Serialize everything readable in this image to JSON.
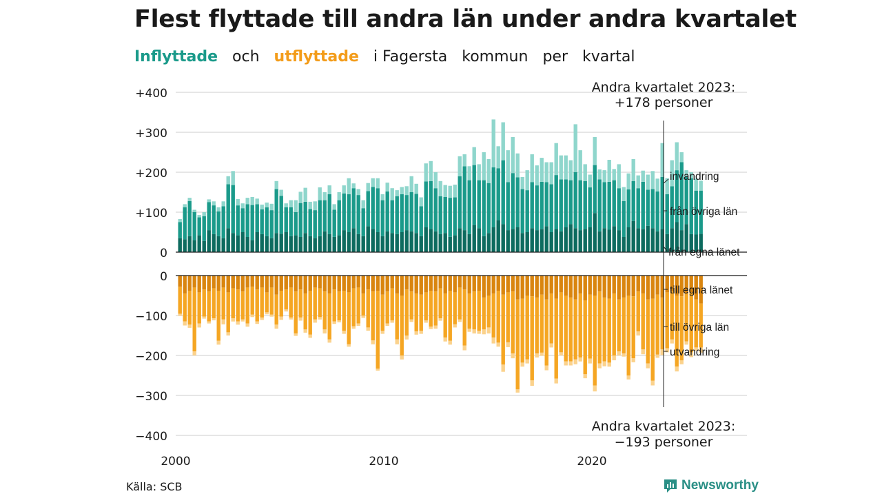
{
  "title": "Flest flyttade till andra län under andra kvartalet",
  "subtitle": {
    "in_word": "Inflyttade",
    "and_word": "och",
    "out_word": "utflyttade",
    "rest_1": "i Fagersta",
    "rest_2": "kommun",
    "rest_3": "per",
    "rest_4": "kvartal"
  },
  "source": "Källa: SCB",
  "brand": "Newsworthy",
  "colors": {
    "in_own": "#0d6b5f",
    "in_other": "#1a9a8a",
    "in_immig": "#8fd6cc",
    "out_own": "#d9850f",
    "out_other": "#f5a623",
    "out_emig": "#fbd28c",
    "grid": "#dddddd"
  },
  "chart_data": {
    "type": "bar",
    "stacked": true,
    "x_ticks": [
      "2000",
      "2010",
      "2020"
    ],
    "y_ticks_top": [
      "+400",
      "+300",
      "+200",
      "+100",
      "0"
    ],
    "y_ticks_bottom": [
      "0",
      "−100",
      "−200",
      "−300",
      "−400"
    ],
    "ylim_top": [
      0,
      400
    ],
    "ylim_bottom": [
      -400,
      0
    ],
    "annotation_top": [
      "Andra kvartalet 2023:",
      "+178 personer"
    ],
    "annotation_bottom": [
      "Andra kvartalet 2023:",
      "−193 personer"
    ],
    "series_in": [
      {
        "name": "från egna länet",
        "key": "own",
        "values": [
          35,
          32,
          40,
          30,
          42,
          28,
          55,
          45,
          40,
          35,
          60,
          48,
          42,
          50,
          38,
          30,
          50,
          45,
          40,
          35,
          48,
          46,
          50,
          40,
          42,
          38,
          48,
          40,
          35,
          40,
          52,
          45,
          38,
          42,
          55,
          50,
          60,
          45,
          40,
          65,
          58,
          50,
          40,
          52,
          48,
          45,
          50,
          55,
          52,
          48,
          40,
          62,
          58,
          52,
          45,
          48,
          38,
          42,
          60,
          55,
          45,
          68,
          60,
          40,
          48,
          62,
          80,
          70,
          55,
          58,
          62,
          48,
          50,
          60,
          55,
          58,
          65,
          50,
          58,
          52,
          62,
          70,
          60,
          55,
          58,
          62,
          98,
          52,
          60,
          56,
          65,
          55,
          38,
          62,
          78,
          60,
          58,
          66,
          60,
          52,
          58,
          45,
          60,
          75,
          55,
          70,
          45,
          44,
          46
        ]
      },
      {
        "name": "från övriga län",
        "key": "other",
        "values": [
          40,
          80,
          88,
          70,
          45,
          62,
          70,
          72,
          62,
          80,
          110,
          120,
          75,
          60,
          82,
          88,
          70,
          62,
          72,
          70,
          110,
          95,
          62,
          72,
          58,
          85,
          78,
          68,
          70,
          90,
          78,
          100,
          68,
          88,
          92,
          95,
          100,
          98,
          70,
          88,
          105,
          110,
          90,
          100,
          82,
          95,
          95,
          88,
          98,
          98,
          75,
          115,
          120,
          108,
          95,
          90,
          98,
          95,
          130,
          160,
          135,
          150,
          120,
          140,
          125,
          150,
          130,
          160,
          120,
          140,
          125,
          110,
          105,
          115,
          112,
          118,
          110,
          120,
          135,
          130,
          120,
          110,
          140,
          125,
          120,
          100,
          120,
          130,
          115,
          120,
          115,
          105,
          90,
          95,
          100,
          100,
          118,
          90,
          98,
          100,
          130,
          100,
          105,
          130,
          170,
          120,
          140,
          110,
          108
        ]
      },
      {
        "name": "invandring",
        "key": "immig",
        "values": [
          8,
          8,
          8,
          6,
          6,
          10,
          7,
          10,
          10,
          12,
          20,
          35,
          16,
          12,
          16,
          20,
          14,
          12,
          12,
          16,
          20,
          15,
          10,
          18,
          30,
          28,
          35,
          18,
          22,
          32,
          20,
          22,
          14,
          20,
          20,
          40,
          12,
          15,
          20,
          20,
          22,
          25,
          15,
          22,
          30,
          15,
          18,
          22,
          40,
          25,
          22,
          45,
          50,
          40,
          38,
          30,
          30,
          32,
          50,
          30,
          35,
          45,
          40,
          70,
          60,
          120,
          55,
          95,
          80,
          90,
          60,
          30,
          50,
          70,
          50,
          60,
          50,
          55,
          80,
          60,
          60,
          50,
          120,
          75,
          42,
          32,
          70,
          25,
          30,
          55,
          28,
          60,
          35,
          40,
          55,
          32,
          28,
          38,
          45,
          32,
          85,
          40,
          65,
          70,
          25,
          15,
          15,
          30,
          25
        ]
      }
    ],
    "series_out": [
      {
        "name": "till egna länet",
        "key": "own",
        "values": [
          28,
          45,
          38,
          30,
          42,
          35,
          40,
          32,
          38,
          30,
          42,
          32,
          35,
          40,
          30,
          28,
          35,
          30,
          42,
          30,
          48,
          38,
          35,
          30,
          40,
          35,
          45,
          38,
          30,
          32,
          40,
          45,
          35,
          40,
          38,
          42,
          32,
          30,
          45,
          35,
          40,
          38,
          48,
          40,
          32,
          45,
          50,
          35,
          40,
          45,
          48,
          42,
          38,
          40,
          32,
          45,
          38,
          42,
          30,
          35,
          45,
          40,
          38,
          55,
          50,
          45,
          38,
          48,
          42,
          40,
          60,
          58,
          50,
          52,
          55,
          48,
          60,
          45,
          58,
          42,
          50,
          55,
          60,
          45,
          62,
          48,
          50,
          40,
          55,
          58,
          45,
          60,
          55,
          50,
          52,
          40,
          45,
          60,
          58,
          48,
          55,
          42,
          40,
          50,
          52,
          45,
          42,
          60,
          70
        ]
      },
      {
        "name": "till övriga län",
        "key": "other",
        "values": [
          68,
          70,
          85,
          160,
          78,
          68,
          75,
          75,
          125,
          80,
          100,
          75,
          80,
          70,
          90,
          70,
          80,
          75,
          50,
          68,
          75,
          65,
          50,
          75,
          105,
          70,
          90,
          110,
          80,
          72,
          95,
          115,
          80,
          72,
          100,
          130,
          95,
          90,
          55,
          95,
          122,
          195,
          90,
          80,
          80,
          115,
          150,
          115,
          70,
          95,
          90,
          70,
          90,
          85,
          75,
          110,
          125,
          80,
          80,
          140,
          88,
          95,
          100,
          80,
          80,
          110,
          130,
          175,
          125,
          155,
          225,
          160,
          160,
          210,
          140,
          145,
          165,
          125,
          200,
          150,
          165,
          160,
          150,
          160,
          185,
          160,
          225,
          180,
          160,
          160,
          155,
          130,
          140,
          200,
          155,
          100,
          140,
          160,
          205,
          150,
          130,
          140,
          120,
          178,
          160,
          120,
          150,
          120,
          110
        ]
      },
      {
        "name": "utvandring",
        "key": "emig",
        "values": [
          5,
          10,
          8,
          10,
          10,
          5,
          5,
          5,
          10,
          12,
          8,
          8,
          8,
          5,
          8,
          6,
          6,
          6,
          5,
          5,
          10,
          8,
          5,
          5,
          6,
          8,
          8,
          8,
          8,
          6,
          10,
          8,
          6,
          5,
          8,
          6,
          6,
          6,
          6,
          8,
          10,
          5,
          8,
          6,
          6,
          12,
          10,
          10,
          6,
          8,
          8,
          6,
          6,
          8,
          6,
          10,
          10,
          8,
          6,
          12,
          8,
          10,
          8,
          12,
          15,
          15,
          10,
          18,
          12,
          12,
          8,
          10,
          10,
          14,
          10,
          8,
          12,
          10,
          12,
          8,
          10,
          10,
          12,
          10,
          10,
          12,
          15,
          12,
          12,
          10,
          12,
          10,
          8,
          10,
          10,
          10,
          12,
          12,
          12,
          8,
          14,
          10,
          10,
          12,
          10,
          8,
          12,
          8,
          13
        ]
      }
    ]
  }
}
